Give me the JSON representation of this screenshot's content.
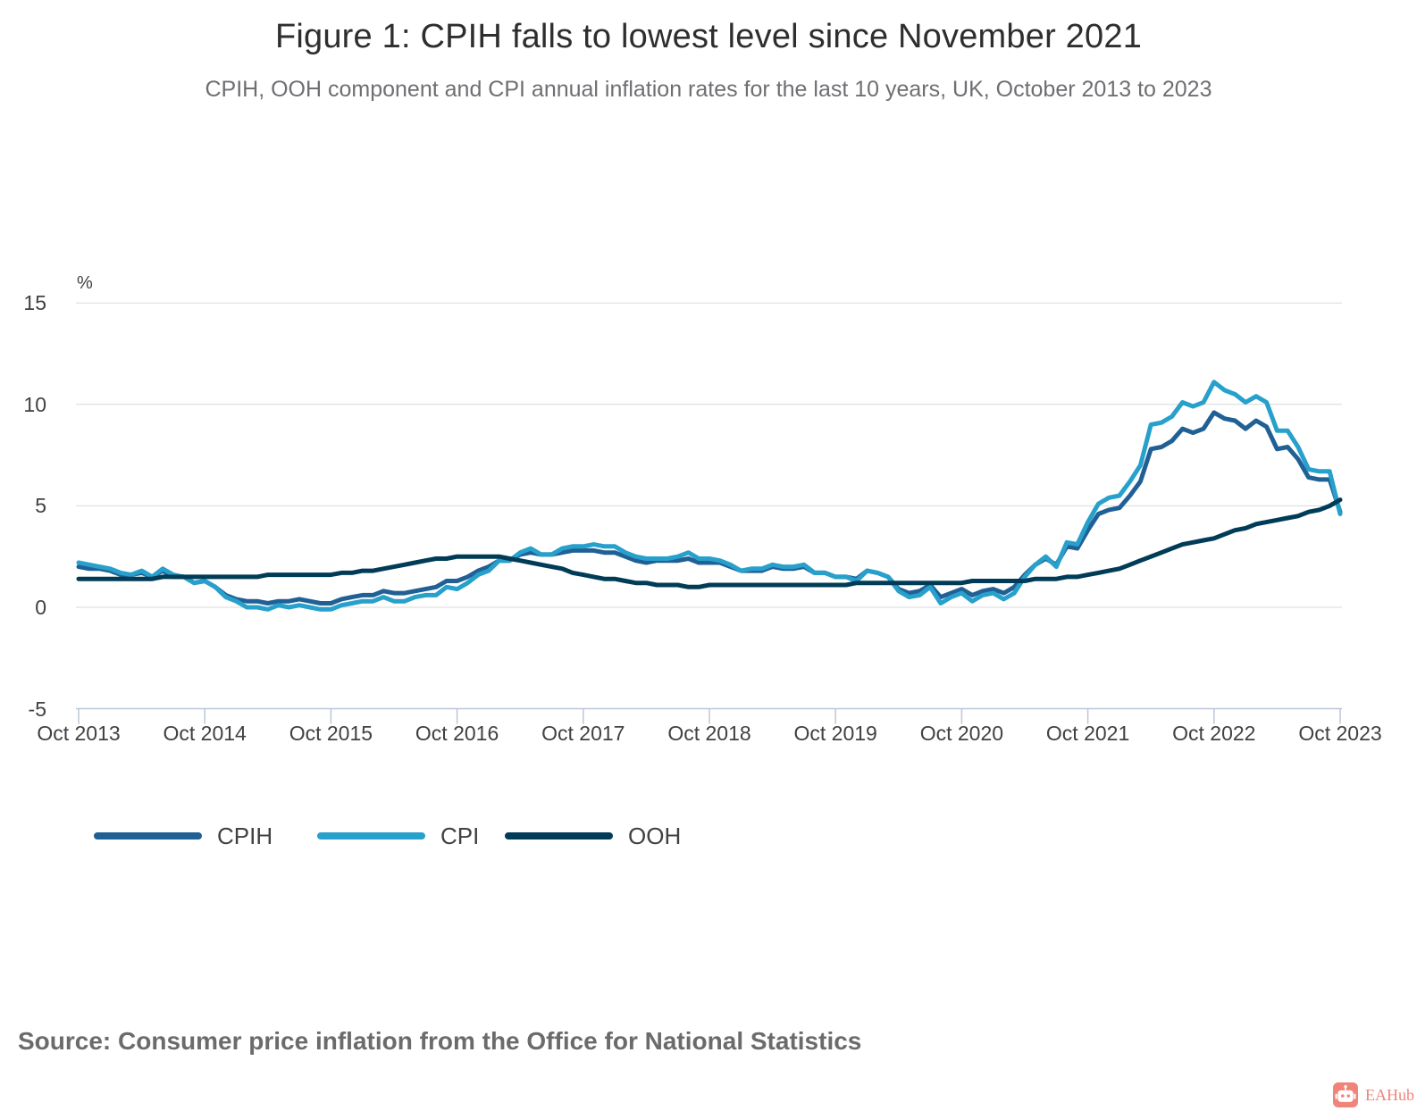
{
  "chart_data": {
    "type": "line",
    "title": "Figure 1: CPIH falls to lowest level since November 2021",
    "subtitle": "CPIH, OOH component and CPI annual inflation rates for the last 10 years, UK, October 2013 to 2023",
    "unit_label": "%",
    "ylabel": "%",
    "xlabel": "",
    "ylim": [
      -5,
      15
    ],
    "y_ticks": [
      15,
      10,
      5,
      0,
      -5
    ],
    "x_tick_labels": [
      "Oct 2013",
      "Oct 2014",
      "Oct 2015",
      "Oct 2016",
      "Oct 2017",
      "Oct 2018",
      "Oct 2019",
      "Oct 2020",
      "Oct 2021",
      "Oct 2022",
      "Oct 2023"
    ],
    "x_start": "Oct 2013",
    "x_end": "Oct 2023",
    "interval": "monthly",
    "grid": "horizontal",
    "grid_color": "#d9d9d9",
    "axis_color": "#bac7d9",
    "legend_position": "bottom-left",
    "series": [
      {
        "name": "CPIH",
        "color": "#206095",
        "values": [
          2.0,
          1.9,
          1.9,
          1.8,
          1.6,
          1.6,
          1.7,
          1.5,
          1.8,
          1.5,
          1.5,
          1.2,
          1.3,
          1.0,
          0.6,
          0.4,
          0.3,
          0.3,
          0.2,
          0.3,
          0.3,
          0.4,
          0.3,
          0.2,
          0.2,
          0.4,
          0.5,
          0.6,
          0.6,
          0.8,
          0.7,
          0.7,
          0.8,
          0.9,
          1.0,
          1.3,
          1.3,
          1.5,
          1.8,
          2.0,
          2.3,
          2.3,
          2.6,
          2.7,
          2.6,
          2.6,
          2.7,
          2.8,
          2.8,
          2.8,
          2.7,
          2.7,
          2.5,
          2.3,
          2.2,
          2.3,
          2.3,
          2.3,
          2.4,
          2.2,
          2.2,
          2.2,
          2.0,
          1.8,
          1.8,
          1.8,
          2.0,
          1.9,
          1.9,
          2.0,
          1.7,
          1.7,
          1.5,
          1.5,
          1.4,
          1.8,
          1.7,
          1.5,
          0.9,
          0.7,
          0.8,
          1.1,
          0.5,
          0.7,
          0.9,
          0.6,
          0.8,
          0.9,
          0.7,
          1.0,
          1.6,
          2.1,
          2.4,
          2.1,
          3.0,
          2.9,
          3.8,
          4.6,
          4.8,
          4.9,
          5.5,
          6.2,
          7.8,
          7.9,
          8.2,
          8.8,
          8.6,
          8.8,
          9.6,
          9.3,
          9.2,
          8.8,
          9.2,
          8.9,
          7.8,
          7.9,
          7.3,
          6.4,
          6.3,
          6.3,
          4.7
        ]
      },
      {
        "name": "CPI",
        "color": "#27A0CC",
        "values": [
          2.2,
          2.1,
          2.0,
          1.9,
          1.7,
          1.6,
          1.8,
          1.5,
          1.9,
          1.6,
          1.5,
          1.2,
          1.3,
          1.0,
          0.5,
          0.3,
          0.0,
          0.0,
          -0.1,
          0.1,
          0.0,
          0.1,
          0.0,
          -0.1,
          -0.1,
          0.1,
          0.2,
          0.3,
          0.3,
          0.5,
          0.3,
          0.3,
          0.5,
          0.6,
          0.6,
          1.0,
          0.9,
          1.2,
          1.6,
          1.8,
          2.3,
          2.3,
          2.7,
          2.9,
          2.6,
          2.6,
          2.9,
          3.0,
          3.0,
          3.1,
          3.0,
          3.0,
          2.7,
          2.5,
          2.4,
          2.4,
          2.4,
          2.5,
          2.7,
          2.4,
          2.4,
          2.3,
          2.1,
          1.8,
          1.9,
          1.9,
          2.1,
          2.0,
          2.0,
          2.1,
          1.7,
          1.7,
          1.5,
          1.5,
          1.3,
          1.8,
          1.7,
          1.5,
          0.8,
          0.5,
          0.6,
          1.0,
          0.2,
          0.5,
          0.7,
          0.3,
          0.6,
          0.7,
          0.4,
          0.7,
          1.5,
          2.1,
          2.5,
          2.0,
          3.2,
          3.1,
          4.2,
          5.1,
          5.4,
          5.5,
          6.2,
          7.0,
          9.0,
          9.1,
          9.4,
          10.1,
          9.9,
          10.1,
          11.1,
          10.7,
          10.5,
          10.1,
          10.4,
          10.1,
          8.7,
          8.7,
          7.9,
          6.8,
          6.7,
          6.7,
          4.6
        ]
      },
      {
        "name": "OOH",
        "color": "#003C57",
        "values": [
          1.4,
          1.4,
          1.4,
          1.4,
          1.4,
          1.4,
          1.4,
          1.4,
          1.5,
          1.5,
          1.5,
          1.5,
          1.5,
          1.5,
          1.5,
          1.5,
          1.5,
          1.5,
          1.6,
          1.6,
          1.6,
          1.6,
          1.6,
          1.6,
          1.6,
          1.7,
          1.7,
          1.8,
          1.8,
          1.9,
          2.0,
          2.1,
          2.2,
          2.3,
          2.4,
          2.4,
          2.5,
          2.5,
          2.5,
          2.5,
          2.5,
          2.4,
          2.3,
          2.2,
          2.1,
          2.0,
          1.9,
          1.7,
          1.6,
          1.5,
          1.4,
          1.4,
          1.3,
          1.2,
          1.2,
          1.1,
          1.1,
          1.1,
          1.0,
          1.0,
          1.1,
          1.1,
          1.1,
          1.1,
          1.1,
          1.1,
          1.1,
          1.1,
          1.1,
          1.1,
          1.1,
          1.1,
          1.1,
          1.1,
          1.2,
          1.2,
          1.2,
          1.2,
          1.2,
          1.2,
          1.2,
          1.2,
          1.2,
          1.2,
          1.2,
          1.3,
          1.3,
          1.3,
          1.3,
          1.3,
          1.3,
          1.4,
          1.4,
          1.4,
          1.5,
          1.5,
          1.6,
          1.7,
          1.8,
          1.9,
          2.1,
          2.3,
          2.5,
          2.7,
          2.9,
          3.1,
          3.2,
          3.3,
          3.4,
          3.6,
          3.8,
          3.9,
          4.1,
          4.2,
          4.3,
          4.4,
          4.5,
          4.7,
          4.8,
          5.0,
          5.3
        ]
      }
    ]
  },
  "footer": {
    "source": "Source: Consumer price inflation from the Office for National Statistics"
  },
  "watermark": {
    "label": "EAHub",
    "color": "#f0847b"
  }
}
